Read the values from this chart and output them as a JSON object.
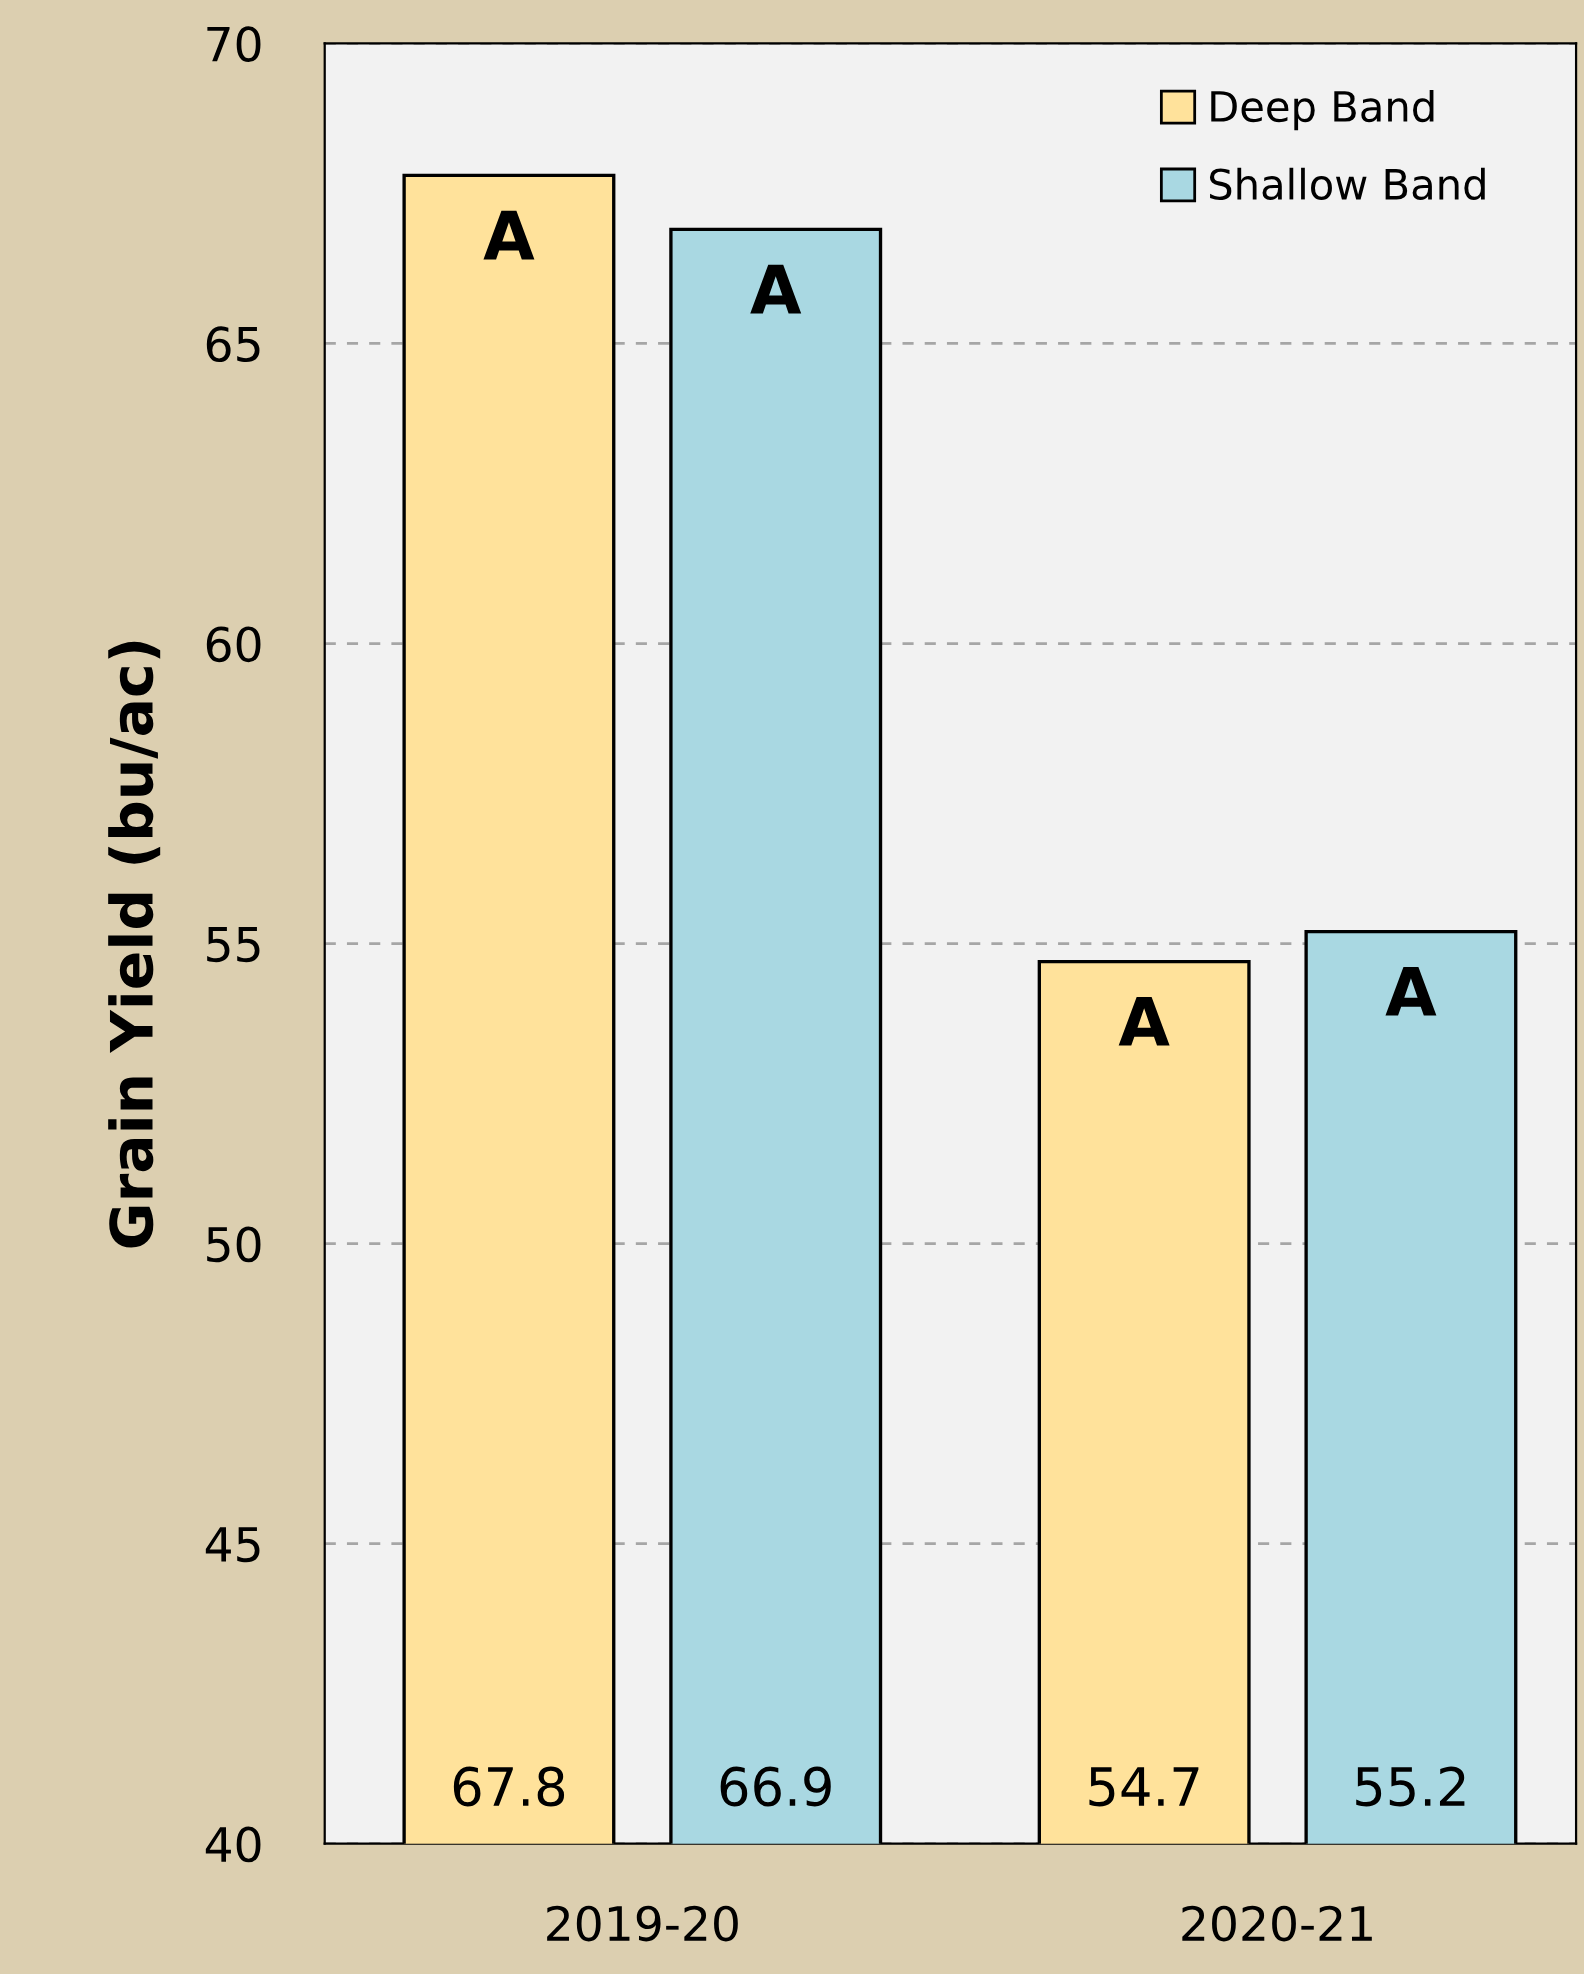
{
  "chart_data": {
    "type": "bar",
    "ylabel": "Grain Yield (bu/ac)",
    "categories": [
      "2019-20",
      "2020-21"
    ],
    "series": [
      {
        "name": "Deep Band",
        "color": "#ffe29b",
        "values": [
          67.8,
          54.7
        ]
      },
      {
        "name": "Shallow Band",
        "color": "#a9d8e2",
        "values": [
          66.9,
          55.2
        ]
      }
    ],
    "ylim": [
      40,
      70
    ],
    "yticks": [
      40,
      45,
      50,
      55,
      60,
      65,
      70
    ],
    "grid": "y",
    "legend": "top right",
    "data_labels": true,
    "annotations": [
      "A",
      "A",
      "A",
      "A"
    ]
  }
}
